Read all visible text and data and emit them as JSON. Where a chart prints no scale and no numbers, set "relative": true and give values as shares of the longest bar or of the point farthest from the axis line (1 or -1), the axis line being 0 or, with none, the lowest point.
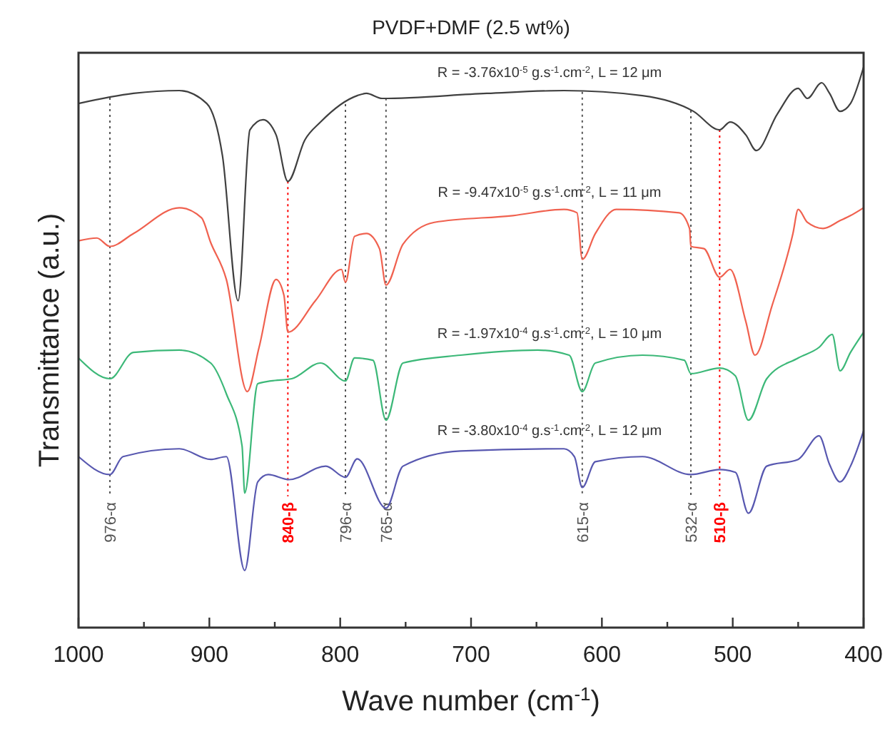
{
  "chart_data": {
    "type": "line",
    "title": "PVDF+DMF (2.5 wt%)",
    "xlabel": "Wave number (cm$^{-1}$)",
    "ylabel": "Transmittance (a.u.)",
    "relative": true,
    "tick_labels": "x",
    "line_style": "solid",
    "xlim": [
      1000,
      400
    ],
    "xticks": [
      1000,
      {
        "value": 950,
        "label": null
      },
      900,
      {
        "value": 850,
        "label": null
      },
      800,
      {
        "value": 750,
        "label": null
      },
      700,
      {
        "value": 650,
        "label": null
      },
      600,
      {
        "value": 550,
        "label": null
      },
      500,
      {
        "value": 450,
        "label": null
      },
      400
    ],
    "series": [
      {
        "color": "#404040",
        "x": [
          1000,
          958,
          923,
          902,
          890,
          878,
          869,
          859,
          849,
          840,
          827,
          815,
          787,
          780,
          768,
          688,
          629,
          569,
          530,
          510,
          502,
          490,
          482,
          466,
          450,
          443,
          432,
          426,
          418,
          410,
          400
        ],
        "values": [
          0.935,
          0.953,
          0.958,
          0.935,
          0.842,
          0.583,
          0.888,
          0.906,
          0.879,
          0.796,
          0.87,
          0.902,
          0.949,
          0.953,
          0.944,
          0.953,
          0.958,
          0.949,
          0.921,
          0.888,
          0.902,
          0.879,
          0.851,
          0.916,
          0.962,
          0.944,
          0.972,
          0.953,
          0.921,
          0.935,
          1
        ]
      },
      {
        "color": "#f0614f",
        "x": [
          1000,
          986,
          976,
          958,
          923,
          906,
          899,
          887,
          871,
          862,
          849,
          843,
          840,
          819,
          799,
          796,
          789,
          780,
          770,
          765,
          752,
          728,
          668,
          629,
          619,
          615,
          605,
          589,
          541,
          533,
          532,
          522,
          510,
          502,
          490,
          483,
          470,
          454,
          450,
          443,
          431,
          418,
          410,
          400
        ],
        "values": [
          0.69,
          0.695,
          0.68,
          0.703,
          0.749,
          0.731,
          0.687,
          0.621,
          0.421,
          0.5,
          0.621,
          0.593,
          0.527,
          0.583,
          0.639,
          0.616,
          0.698,
          0.703,
          0.676,
          0.611,
          0.684,
          0.723,
          0.735,
          0.746,
          0.74,
          0.657,
          0.703,
          0.746,
          0.74,
          0.712,
          0.68,
          0.676,
          0.625,
          0.639,
          0.546,
          0.486,
          0.574,
          0.703,
          0.746,
          0.723,
          0.712,
          0.726,
          0.735,
          0.749
        ]
      },
      {
        "color": "#3cb878",
        "x": [
          1000,
          976,
          958,
          923,
          899,
          887,
          875,
          873,
          863,
          853,
          837,
          815,
          796,
          789,
          775,
          765,
          752,
          708,
          649,
          625,
          615,
          605,
          569,
          537,
          532,
          510,
          498,
          488,
          474,
          450,
          434,
          424,
          418,
          410,
          400
        ],
        "values": [
          0.481,
          0.444,
          0.491,
          0.495,
          0.472,
          0.417,
          0.324,
          0.24,
          0.435,
          0.44,
          0.444,
          0.472,
          0.44,
          0.481,
          0.477,
          0.37,
          0.472,
          0.486,
          0.495,
          0.486,
          0.421,
          0.472,
          0.486,
          0.477,
          0.453,
          0.463,
          0.449,
          0.37,
          0.444,
          0.481,
          0.5,
          0.523,
          0.458,
          0.491,
          0.527
        ]
      },
      {
        "color": "#5858b0",
        "x": [
          1000,
          976,
          966,
          923,
          899,
          887,
          873,
          863,
          855,
          839,
          811,
          796,
          787,
          765,
          752,
          708,
          629,
          621,
          615,
          605,
          569,
          532,
          510,
          498,
          488,
          474,
          450,
          434,
          426,
          418,
          410,
          400
        ],
        "values": [
          0.305,
          0.273,
          0.305,
          0.319,
          0.3,
          0.305,
          0.102,
          0.26,
          0.273,
          0.264,
          0.288,
          0.268,
          0.301,
          0.213,
          0.288,
          0.315,
          0.319,
          0.305,
          0.25,
          0.296,
          0.305,
          0.273,
          0.282,
          0.277,
          0.204,
          0.288,
          0.3,
          0.342,
          0.291,
          0.26,
          0.288,
          0.351
        ]
      }
    ],
    "annotations": [
      "R = -3.76x10$^{-5}$ g.s$^{-1}$.cm$^{-2}$, L = 12 μm",
      "R = -9.47x10$^{-5}$ g.s$^{-1}$.cm$^{-2}$, L = 11 μm",
      "R = -1.97x10$^{-4}$ g.s$^{-1}$.cm$^{-2}$, L = 10 μm",
      "R = -3.80x10$^{-4}$ g.s$^{-1}$.cm$^{-2}$, L = 12 μm"
    ],
    "ref_lines": [
      {
        "axis": "x",
        "value": 976,
        "label": "976-α",
        "color": "#555555",
        "line_style": "dotted"
      },
      {
        "axis": "x",
        "value": 840,
        "label": "840-β",
        "color": "#ff0000",
        "line_style": "dotted"
      },
      {
        "axis": "x",
        "value": 796,
        "label": "796-α",
        "color": "#555555",
        "line_style": "dotted"
      },
      {
        "axis": "x",
        "value": 765,
        "label": "765-α",
        "color": "#555555",
        "line_style": "dotted"
      },
      {
        "axis": "x",
        "value": 615,
        "label": "615-α",
        "color": "#555555",
        "line_style": "dotted"
      },
      {
        "axis": "x",
        "value": 532,
        "label": "532-α",
        "color": "#555555",
        "line_style": "dotted"
      },
      {
        "axis": "x",
        "value": 510,
        "label": "510-β",
        "color": "#ff0000",
        "line_style": "dotted"
      }
    ]
  }
}
